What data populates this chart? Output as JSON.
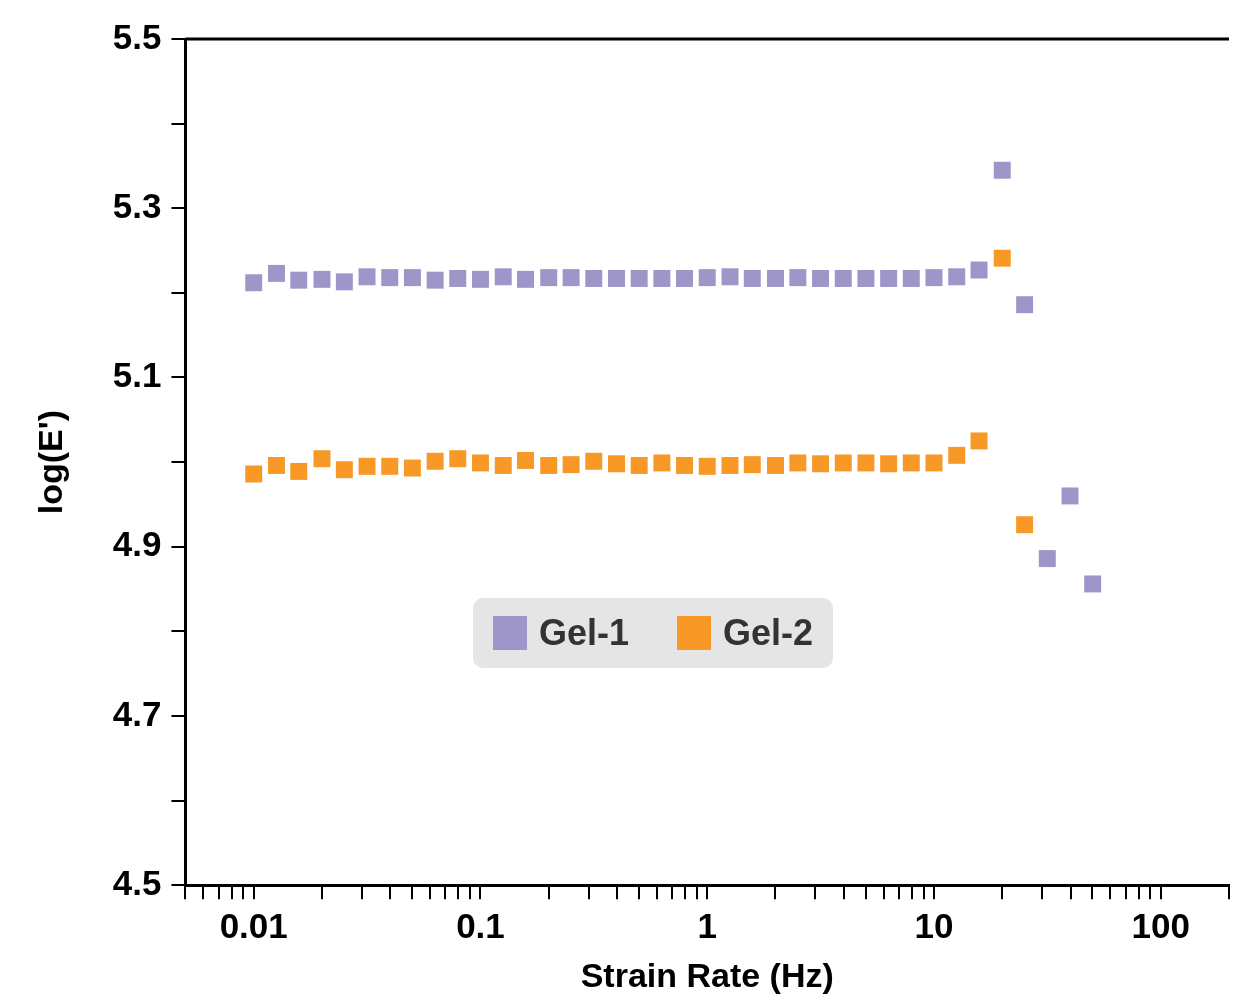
{
  "chart_data": {
    "type": "scatter",
    "xlabel": "Strain Rate (Hz)",
    "ylabel": "log(E')",
    "log": "x",
    "grid": false,
    "legend": "center",
    "marker": "square",
    "xlim": [
      0.005,
      200
    ],
    "xticks": [
      {
        "value": 0.005,
        "label": null
      },
      {
        "value": 0.006,
        "label": null
      },
      {
        "value": 0.007,
        "label": null
      },
      {
        "value": 0.008,
        "label": null
      },
      {
        "value": 0.009,
        "label": null
      },
      0.01,
      {
        "value": 0.02,
        "label": null
      },
      {
        "value": 0.03,
        "label": null
      },
      {
        "value": 0.04,
        "label": null
      },
      {
        "value": 0.05,
        "label": null
      },
      {
        "value": 0.06,
        "label": null
      },
      {
        "value": 0.07,
        "label": null
      },
      {
        "value": 0.08,
        "label": null
      },
      {
        "value": 0.09,
        "label": null
      },
      0.1,
      {
        "value": 0.2,
        "label": null
      },
      {
        "value": 0.3,
        "label": null
      },
      {
        "value": 0.4,
        "label": null
      },
      {
        "value": 0.5,
        "label": null
      },
      {
        "value": 0.6,
        "label": null
      },
      {
        "value": 0.7,
        "label": null
      },
      {
        "value": 0.8,
        "label": null
      },
      {
        "value": 0.9,
        "label": null
      },
      1,
      {
        "value": 2,
        "label": null
      },
      {
        "value": 3,
        "label": null
      },
      {
        "value": 4,
        "label": null
      },
      {
        "value": 5,
        "label": null
      },
      {
        "value": 6,
        "label": null
      },
      {
        "value": 7,
        "label": null
      },
      {
        "value": 8,
        "label": null
      },
      {
        "value": 9,
        "label": null
      },
      10,
      {
        "value": 20,
        "label": null
      },
      {
        "value": 30,
        "label": null
      },
      {
        "value": 40,
        "label": null
      },
      {
        "value": 50,
        "label": null
      },
      {
        "value": 60,
        "label": null
      },
      {
        "value": 70,
        "label": null
      },
      {
        "value": 80,
        "label": null
      },
      {
        "value": 90,
        "label": null
      },
      100,
      {
        "value": 200,
        "label": null
      }
    ],
    "ylim": [
      4.5,
      5.5
    ],
    "yticks": [
      4.5,
      {
        "value": 4.6,
        "label": null
      },
      4.7,
      {
        "value": 4.8,
        "label": null
      },
      4.9,
      {
        "value": 5.0,
        "label": null
      },
      5.1,
      {
        "value": 5.2,
        "label": null
      },
      5.3,
      {
        "value": 5.4,
        "label": null
      },
      5.5
    ],
    "series": [
      {
        "name": "Gel-1",
        "color": "#9e95c8",
        "x": [
          0.01,
          0.0126,
          0.0158,
          0.02,
          0.0251,
          0.0316,
          0.0398,
          0.0501,
          0.0631,
          0.0794,
          0.1,
          0.126,
          0.158,
          0.2,
          0.251,
          0.316,
          0.398,
          0.501,
          0.631,
          0.794,
          1,
          1.26,
          1.58,
          2,
          2.51,
          3.16,
          3.98,
          5.01,
          6.31,
          7.94,
          10,
          12.6,
          15.8,
          20,
          25.1,
          31.6,
          39.8,
          50.1
        ],
        "values": [
          5.212,
          5.223,
          5.215,
          5.216,
          5.213,
          5.219,
          5.218,
          5.218,
          5.215,
          5.217,
          5.216,
          5.219,
          5.216,
          5.218,
          5.218,
          5.217,
          5.217,
          5.217,
          5.217,
          5.217,
          5.218,
          5.219,
          5.217,
          5.217,
          5.218,
          5.217,
          5.217,
          5.217,
          5.217,
          5.217,
          5.218,
          5.219,
          5.227,
          5.345,
          5.186,
          4.886,
          4.96,
          4.856
        ]
      },
      {
        "name": "Gel-2",
        "color": "#f79827",
        "x": [
          0.01,
          0.0126,
          0.0158,
          0.02,
          0.0251,
          0.0316,
          0.0398,
          0.0501,
          0.0631,
          0.0794,
          0.1,
          0.126,
          0.158,
          0.2,
          0.251,
          0.316,
          0.398,
          0.501,
          0.631,
          0.794,
          1,
          1.26,
          1.58,
          2,
          2.51,
          3.16,
          3.98,
          5.01,
          6.31,
          7.94,
          10,
          12.6,
          15.8,
          20,
          25.1
        ],
        "values": [
          4.986,
          4.996,
          4.989,
          5.004,
          4.991,
          4.995,
          4.995,
          4.993,
          5.001,
          5.004,
          4.999,
          4.996,
          5.002,
          4.996,
          4.997,
          5.001,
          4.998,
          4.996,
          4.999,
          4.996,
          4.995,
          4.996,
          4.997,
          4.996,
          4.999,
          4.998,
          4.999,
          4.999,
          4.998,
          4.999,
          4.999,
          5.008,
          5.025,
          5.241,
          4.926
        ]
      }
    ]
  }
}
